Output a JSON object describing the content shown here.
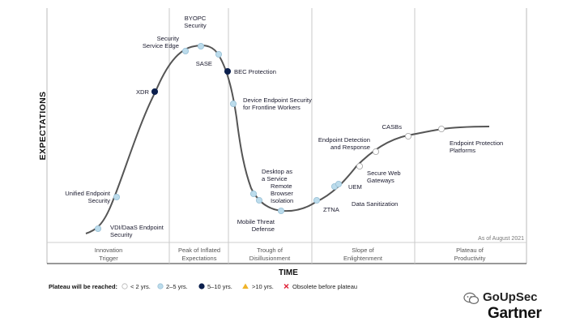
{
  "chart_data": {
    "type": "line",
    "ylabel": "EXPECTATIONS",
    "xlabel": "TIME",
    "as_of": "As of August 2021",
    "phases": [
      {
        "line1": "Innovation",
        "line2": "Trigger"
      },
      {
        "line1": "Peak of Inflated",
        "line2": "Expectations"
      },
      {
        "line1": "Trough of",
        "line2": "Disillusionment"
      },
      {
        "line1": "Slope of",
        "line2": "Enlightenment"
      },
      {
        "line1": "Plateau of",
        "line2": "Productivity"
      }
    ],
    "technologies": [
      {
        "name": [
          "VDI/DaaS Endpoint",
          "Security"
        ],
        "plateau": "2-5"
      },
      {
        "name": [
          "Unified Endpoint",
          "Security"
        ],
        "plateau": "2-5"
      },
      {
        "name": [
          "XDR"
        ],
        "plateau": "5-10"
      },
      {
        "name": [
          "Security",
          "Service Edge"
        ],
        "plateau": "2-5"
      },
      {
        "name": [
          "BYOPC",
          "Security"
        ],
        "plateau": "2-5"
      },
      {
        "name": [
          "SASE"
        ],
        "plateau": "2-5"
      },
      {
        "name": [
          "BEC Protection"
        ],
        "plateau": "5-10"
      },
      {
        "name": [
          "Device Endpoint Security",
          "for Frontline Workers"
        ],
        "plateau": "2-5"
      },
      {
        "name": [
          "Desktop as",
          "a Service"
        ],
        "plateau": "2-5"
      },
      {
        "name": [
          "Remote",
          "Browser",
          "Isolation"
        ],
        "plateau": "2-5"
      },
      {
        "name": [
          "Mobile Threat",
          "Defense"
        ],
        "plateau": "2-5"
      },
      {
        "name": [
          "ZTNA"
        ],
        "plateau": "2-5"
      },
      {
        "name": [
          "UEM"
        ],
        "plateau": "2-5"
      },
      {
        "name": [
          "Data Sanitization"
        ],
        "plateau": "2-5"
      },
      {
        "name": [
          "Secure Web",
          "Gateways"
        ],
        "plateau": "<2"
      },
      {
        "name": [
          "Endpoint Detection",
          "and Response"
        ],
        "plateau": "<2"
      },
      {
        "name": [
          "CASBs"
        ],
        "plateau": "<2"
      },
      {
        "name": [
          "Endpoint Protection",
          "Platforms"
        ],
        "plateau": "<2"
      }
    ],
    "legend": {
      "title": "Plateau will be reached:",
      "items": [
        {
          "key": "<2",
          "label": "< 2 yrs.",
          "symbol": "circle",
          "color": "#ffffff"
        },
        {
          "key": "2-5",
          "label": "2–5 yrs.",
          "symbol": "circle",
          "color": "#bcdcec"
        },
        {
          "key": "5-10",
          "label": "5–10 yrs.",
          "symbol": "circle",
          "color": "#0b1f4d"
        },
        {
          "key": ">10",
          "label": ">10 yrs.",
          "symbol": "triangle",
          "color": "#f0b429"
        },
        {
          "key": "obsolete",
          "label": "Obsolete before plateau",
          "symbol": "x",
          "color": "#e0243a"
        }
      ]
    }
  },
  "watermark": {
    "brand": "GoUpSec",
    "publisher": "Gartner"
  },
  "colors": {
    "curve": "#555555",
    "axis": "#333333",
    "divider": "#c8c8c8",
    "dot_stroke": "#9cc3d8"
  }
}
